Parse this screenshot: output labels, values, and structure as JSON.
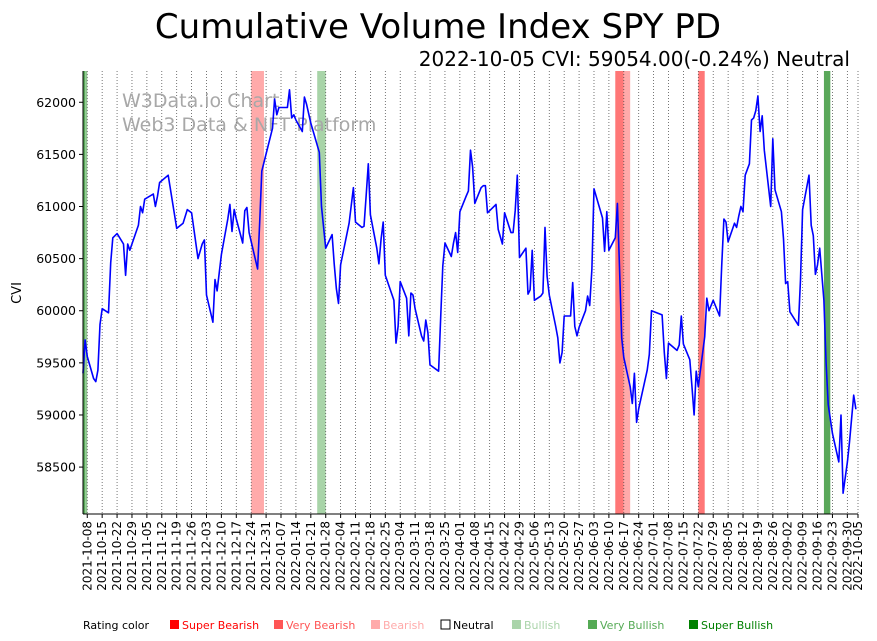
{
  "chart_data": {
    "type": "line",
    "title": "Cumulative Volume Index SPY PD",
    "subtitle": "2022-10-05 CVI: 59054.00(-0.24%) Neutral",
    "ylabel": "CVI",
    "xlabel": "",
    "ylim": [
      58050,
      62300
    ],
    "yticks": [
      58500,
      59000,
      59500,
      60000,
      60500,
      61000,
      61500,
      62000
    ],
    "x_start": "2021-10-06",
    "x_end": "2022-10-05",
    "xticks": [
      "2021-10-08",
      "2021-10-15",
      "2021-10-22",
      "2021-10-29",
      "2021-11-05",
      "2021-11-12",
      "2021-11-19",
      "2021-11-26",
      "2021-12-03",
      "2021-12-10",
      "2021-12-17",
      "2021-12-24",
      "2021-12-31",
      "2022-01-07",
      "2022-01-14",
      "2022-01-21",
      "2022-01-28",
      "2022-02-04",
      "2022-02-11",
      "2022-02-18",
      "2022-02-25",
      "2022-03-04",
      "2022-03-11",
      "2022-03-18",
      "2022-03-25",
      "2022-04-01",
      "2022-04-08",
      "2022-04-15",
      "2022-04-22",
      "2022-04-29",
      "2022-05-06",
      "2022-05-13",
      "2022-05-20",
      "2022-05-27",
      "2022-06-03",
      "2022-06-10",
      "2022-06-17",
      "2022-06-24",
      "2022-07-01",
      "2022-07-08",
      "2022-07-15",
      "2022-07-22",
      "2022-07-29",
      "2022-08-05",
      "2022-08-12",
      "2022-08-19",
      "2022-08-26",
      "2022-09-02",
      "2022-09-09",
      "2022-09-16",
      "2022-09-23",
      "2022-09-30",
      "2022-10-05"
    ],
    "series": [
      {
        "name": "CVI",
        "color": "#0000ff",
        "points": [
          [
            "2021-10-06",
            59400
          ],
          [
            "2021-10-07",
            59720
          ],
          [
            "2021-10-08",
            59560
          ],
          [
            "2021-10-11",
            59350
          ],
          [
            "2021-10-12",
            59320
          ],
          [
            "2021-10-13",
            59430
          ],
          [
            "2021-10-14",
            59870
          ],
          [
            "2021-10-15",
            60020
          ],
          [
            "2021-10-18",
            59980
          ],
          [
            "2021-10-19",
            60460
          ],
          [
            "2021-10-20",
            60700
          ],
          [
            "2021-10-22",
            60740
          ],
          [
            "2021-10-25",
            60640
          ],
          [
            "2021-10-26",
            60340
          ],
          [
            "2021-10-27",
            60640
          ],
          [
            "2021-10-28",
            60580
          ],
          [
            "2021-11-01",
            60820
          ],
          [
            "2021-11-02",
            61000
          ],
          [
            "2021-11-03",
            60940
          ],
          [
            "2021-11-04",
            61070
          ],
          [
            "2021-11-08",
            61120
          ],
          [
            "2021-11-09",
            61000
          ],
          [
            "2021-11-10",
            61100
          ],
          [
            "2021-11-11",
            61230
          ],
          [
            "2021-11-15",
            61300
          ],
          [
            "2021-11-19",
            60790
          ],
          [
            "2021-11-22",
            60840
          ],
          [
            "2021-11-24",
            60970
          ],
          [
            "2021-11-26",
            60940
          ],
          [
            "2021-11-29",
            60500
          ],
          [
            "2021-12-01",
            60640
          ],
          [
            "2021-12-02",
            60680
          ],
          [
            "2021-12-03",
            60150
          ],
          [
            "2021-12-06",
            59890
          ],
          [
            "2021-12-07",
            60300
          ],
          [
            "2021-12-08",
            60190
          ],
          [
            "2021-12-10",
            60540
          ],
          [
            "2021-12-13",
            60880
          ],
          [
            "2021-12-14",
            61020
          ],
          [
            "2021-12-15",
            60760
          ],
          [
            "2021-12-16",
            60970
          ],
          [
            "2021-12-17",
            60880
          ],
          [
            "2021-12-20",
            60650
          ],
          [
            "2021-12-21",
            60960
          ],
          [
            "2021-12-22",
            60990
          ],
          [
            "2021-12-23",
            60750
          ],
          [
            "2021-12-27",
            60400
          ],
          [
            "2021-12-28",
            60850
          ],
          [
            "2021-12-29",
            61340
          ],
          [
            "2022-01-03",
            61750
          ],
          [
            "2022-01-04",
            62030
          ],
          [
            "2022-01-05",
            61880
          ],
          [
            "2022-01-06",
            61950
          ],
          [
            "2022-01-07",
            61950
          ],
          [
            "2022-01-10",
            61950
          ],
          [
            "2022-01-11",
            62120
          ],
          [
            "2022-01-12",
            61850
          ],
          [
            "2022-01-13",
            61880
          ],
          [
            "2022-01-14",
            61830
          ],
          [
            "2022-01-17",
            61720
          ],
          [
            "2022-01-18",
            62050
          ],
          [
            "2022-01-19",
            61980
          ],
          [
            "2022-01-21",
            61800
          ],
          [
            "2022-01-25",
            61520
          ],
          [
            "2022-01-26",
            61000
          ],
          [
            "2022-01-28",
            60600
          ],
          [
            "2022-01-31",
            60730
          ],
          [
            "2022-02-01",
            60450
          ],
          [
            "2022-02-02",
            60210
          ],
          [
            "2022-02-03",
            60070
          ],
          [
            "2022-02-04",
            60440
          ],
          [
            "2022-02-08",
            60840
          ],
          [
            "2022-02-10",
            61180
          ],
          [
            "2022-02-11",
            60850
          ],
          [
            "2022-02-14",
            60800
          ],
          [
            "2022-02-15",
            60810
          ],
          [
            "2022-02-16",
            61110
          ],
          [
            "2022-02-17",
            61410
          ],
          [
            "2022-02-18",
            60920
          ],
          [
            "2022-02-21",
            60600
          ],
          [
            "2022-02-22",
            60450
          ],
          [
            "2022-02-23",
            60690
          ],
          [
            "2022-02-24",
            60850
          ],
          [
            "2022-02-25",
            60340
          ],
          [
            "2022-03-01",
            60100
          ],
          [
            "2022-03-02",
            59690
          ],
          [
            "2022-03-03",
            59850
          ],
          [
            "2022-03-04",
            60280
          ],
          [
            "2022-03-07",
            60120
          ],
          [
            "2022-03-08",
            59760
          ],
          [
            "2022-03-09",
            60170
          ],
          [
            "2022-03-10",
            60150
          ],
          [
            "2022-03-11",
            60020
          ],
          [
            "2022-03-14",
            59760
          ],
          [
            "2022-03-15",
            59710
          ],
          [
            "2022-03-16",
            59910
          ],
          [
            "2022-03-17",
            59790
          ],
          [
            "2022-03-18",
            59480
          ],
          [
            "2022-03-22",
            59420
          ],
          [
            "2022-03-23",
            59940
          ],
          [
            "2022-03-24",
            60430
          ],
          [
            "2022-03-25",
            60650
          ],
          [
            "2022-03-28",
            60520
          ],
          [
            "2022-03-29",
            60650
          ],
          [
            "2022-03-30",
            60750
          ],
          [
            "2022-03-31",
            60560
          ],
          [
            "2022-04-01",
            60950
          ],
          [
            "2022-04-04",
            61100
          ],
          [
            "2022-04-05",
            61150
          ],
          [
            "2022-04-06",
            61540
          ],
          [
            "2022-04-07",
            61380
          ],
          [
            "2022-04-08",
            61030
          ],
          [
            "2022-04-11",
            61180
          ],
          [
            "2022-04-12",
            61200
          ],
          [
            "2022-04-13",
            61200
          ],
          [
            "2022-04-14",
            60940
          ],
          [
            "2022-04-18",
            61020
          ],
          [
            "2022-04-19",
            60780
          ],
          [
            "2022-04-21",
            60640
          ],
          [
            "2022-04-22",
            60940
          ],
          [
            "2022-04-25",
            60750
          ],
          [
            "2022-04-26",
            60750
          ],
          [
            "2022-04-27",
            60960
          ],
          [
            "2022-04-28",
            61300
          ],
          [
            "2022-04-29",
            60510
          ],
          [
            "2022-05-02",
            60600
          ],
          [
            "2022-05-03",
            60160
          ],
          [
            "2022-05-04",
            60200
          ],
          [
            "2022-05-05",
            60580
          ],
          [
            "2022-05-06",
            60100
          ],
          [
            "2022-05-09",
            60140
          ],
          [
            "2022-05-10",
            60170
          ],
          [
            "2022-05-11",
            60800
          ],
          [
            "2022-05-12",
            60330
          ],
          [
            "2022-05-13",
            60150
          ],
          [
            "2022-05-16",
            59850
          ],
          [
            "2022-05-17",
            59740
          ],
          [
            "2022-05-18",
            59500
          ],
          [
            "2022-05-19",
            59600
          ],
          [
            "2022-05-20",
            59950
          ],
          [
            "2022-05-23",
            59950
          ],
          [
            "2022-05-24",
            60270
          ],
          [
            "2022-05-25",
            59850
          ],
          [
            "2022-05-26",
            59760
          ],
          [
            "2022-05-27",
            59840
          ],
          [
            "2022-05-30",
            60000
          ],
          [
            "2022-05-31",
            60140
          ],
          [
            "2022-06-01",
            60050
          ],
          [
            "2022-06-02",
            60400
          ],
          [
            "2022-06-03",
            61170
          ],
          [
            "2022-06-07",
            60890
          ],
          [
            "2022-06-08",
            60570
          ],
          [
            "2022-06-09",
            60950
          ],
          [
            "2022-06-10",
            60580
          ],
          [
            "2022-06-13",
            60700
          ],
          [
            "2022-06-14",
            61030
          ],
          [
            "2022-06-15",
            60420
          ],
          [
            "2022-06-16",
            59740
          ],
          [
            "2022-06-17",
            59550
          ],
          [
            "2022-06-20",
            59270
          ],
          [
            "2022-06-21",
            59110
          ],
          [
            "2022-06-22",
            59400
          ],
          [
            "2022-06-23",
            58930
          ],
          [
            "2022-06-24",
            59060
          ],
          [
            "2022-06-28",
            59430
          ],
          [
            "2022-06-29",
            59580
          ],
          [
            "2022-06-30",
            60000
          ],
          [
            "2022-07-05",
            59960
          ],
          [
            "2022-07-06",
            59600
          ],
          [
            "2022-07-07",
            59350
          ],
          [
            "2022-07-08",
            59690
          ],
          [
            "2022-07-12",
            59620
          ],
          [
            "2022-07-13",
            59670
          ],
          [
            "2022-07-14",
            59950
          ],
          [
            "2022-07-15",
            59680
          ],
          [
            "2022-07-18",
            59530
          ],
          [
            "2022-07-19",
            59280
          ],
          [
            "2022-07-20",
            59000
          ],
          [
            "2022-07-21",
            59420
          ],
          [
            "2022-07-22",
            59270
          ],
          [
            "2022-07-25",
            59750
          ],
          [
            "2022-07-26",
            60120
          ],
          [
            "2022-07-27",
            60000
          ],
          [
            "2022-07-28",
            60050
          ],
          [
            "2022-07-29",
            60100
          ],
          [
            "2022-08-01",
            59950
          ],
          [
            "2022-08-02",
            60430
          ],
          [
            "2022-08-03",
            60880
          ],
          [
            "2022-08-04",
            60850
          ],
          [
            "2022-08-05",
            60660
          ],
          [
            "2022-08-08",
            60840
          ],
          [
            "2022-08-09",
            60800
          ],
          [
            "2022-08-10",
            60910
          ],
          [
            "2022-08-11",
            61000
          ],
          [
            "2022-08-12",
            60950
          ],
          [
            "2022-08-13",
            61300
          ],
          [
            "2022-08-15",
            61410
          ],
          [
            "2022-08-16",
            61830
          ],
          [
            "2022-08-17",
            61850
          ],
          [
            "2022-08-18",
            61920
          ],
          [
            "2022-08-19",
            62060
          ],
          [
            "2022-08-20",
            61720
          ],
          [
            "2022-08-21",
            61870
          ],
          [
            "2022-08-22",
            61540
          ],
          [
            "2022-08-25",
            61000
          ],
          [
            "2022-08-26",
            61650
          ],
          [
            "2022-08-27",
            61160
          ],
          [
            "2022-08-30",
            60950
          ],
          [
            "2022-08-31",
            60690
          ],
          [
            "2022-09-01",
            60260
          ],
          [
            "2022-09-02",
            60280
          ],
          [
            "2022-09-03",
            59990
          ],
          [
            "2022-09-07",
            59860
          ],
          [
            "2022-09-08",
            60300
          ],
          [
            "2022-09-09",
            60970
          ],
          [
            "2022-09-12",
            61300
          ],
          [
            "2022-09-13",
            60820
          ],
          [
            "2022-09-14",
            60720
          ],
          [
            "2022-09-15",
            60350
          ],
          [
            "2022-09-16",
            60440
          ],
          [
            "2022-09-17",
            60600
          ],
          [
            "2022-09-19",
            60100
          ],
          [
            "2022-09-20",
            59500
          ],
          [
            "2022-09-21",
            59100
          ],
          [
            "2022-09-23",
            58820
          ],
          [
            "2022-09-26",
            58550
          ],
          [
            "2022-09-27",
            59000
          ],
          [
            "2022-09-28",
            58250
          ],
          [
            "2022-09-30",
            58550
          ],
          [
            "2022-10-01",
            58740
          ],
          [
            "2022-10-03",
            59190
          ],
          [
            "2022-10-04",
            59054
          ]
        ]
      }
    ],
    "rating_bands": [
      {
        "start": "2021-10-06",
        "end": "2021-10-07",
        "color": "#5aa85a"
      },
      {
        "start": "2021-10-07",
        "end": "2021-10-08",
        "color": "#8ec88e"
      },
      {
        "start": "2021-12-24",
        "end": "2021-12-30",
        "color": "#ffaaaa"
      },
      {
        "start": "2022-01-24",
        "end": "2022-01-28",
        "color": "#a8d4a8"
      },
      {
        "start": "2022-06-13",
        "end": "2022-06-17",
        "color": "#ff7777"
      },
      {
        "start": "2022-06-17",
        "end": "2022-06-20",
        "color": "#ffaaaa"
      },
      {
        "start": "2022-07-22",
        "end": "2022-07-25",
        "color": "#ff7777"
      },
      {
        "start": "2022-09-19",
        "end": "2022-09-22",
        "color": "#5aa85a"
      }
    ],
    "legend": {
      "title": "Rating color",
      "entries": [
        {
          "label": "Super Bearish",
          "color": "#ff0000"
        },
        {
          "label": "Very Bearish",
          "color": "#ff5555"
        },
        {
          "label": "Bearish",
          "color": "#ffaaaa"
        },
        {
          "label": "Neutral",
          "color": "#000000"
        },
        {
          "label": "Bullish",
          "color": "#aad4aa"
        },
        {
          "label": "Very Bullish",
          "color": "#55aa55"
        },
        {
          "label": "Super Bullish",
          "color": "#008000"
        }
      ]
    },
    "watermark": [
      "W3Data.io Chart",
      "Web3 Data & NFT Platform"
    ]
  }
}
